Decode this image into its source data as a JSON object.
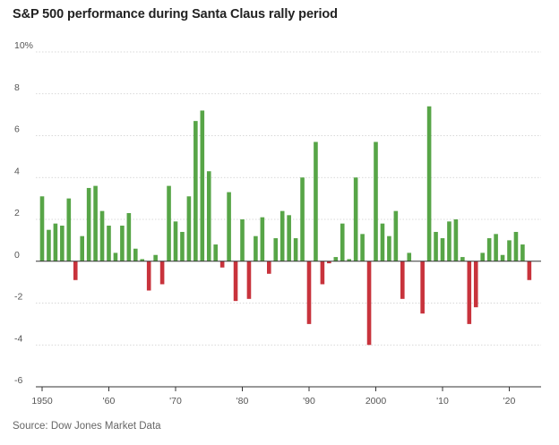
{
  "chart_data": {
    "type": "bar",
    "title": "S&P 500 performance during Santa Claus rally period",
    "source": "Source: Dow Jones Market Data",
    "colors": {
      "positive": "#57a547",
      "negative": "#c8333c",
      "grid": "#cccccc"
    },
    "ylim": [
      -6,
      10
    ],
    "yticks": [
      {
        "value": 10,
        "label": "10%"
      },
      {
        "value": 8,
        "label": "8"
      },
      {
        "value": 6,
        "label": "6"
      },
      {
        "value": 4,
        "label": "4"
      },
      {
        "value": 2,
        "label": "2"
      },
      {
        "value": 0,
        "label": "0"
      },
      {
        "value": -2,
        "label": "-2"
      },
      {
        "value": -4,
        "label": "-4"
      },
      {
        "value": -6,
        "label": "-6"
      }
    ],
    "xticks": [
      {
        "year": 1950,
        "label": "1950"
      },
      {
        "year": 1960,
        "label": "'60"
      },
      {
        "year": 1970,
        "label": "'70"
      },
      {
        "year": 1980,
        "label": "'80"
      },
      {
        "year": 1990,
        "label": "'90"
      },
      {
        "year": 2000,
        "label": "2000"
      },
      {
        "year": 2010,
        "label": "'10"
      },
      {
        "year": 2020,
        "label": "'20"
      }
    ],
    "x": [
      1950,
      1951,
      1952,
      1953,
      1954,
      1955,
      1956,
      1957,
      1958,
      1959,
      1960,
      1961,
      1962,
      1963,
      1964,
      1965,
      1966,
      1967,
      1968,
      1969,
      1970,
      1971,
      1972,
      1973,
      1974,
      1975,
      1976,
      1977,
      1978,
      1979,
      1980,
      1981,
      1982,
      1983,
      1984,
      1985,
      1986,
      1987,
      1988,
      1989,
      1990,
      1991,
      1992,
      1993,
      1994,
      1995,
      1996,
      1997,
      1998,
      1999,
      2000,
      2001,
      2002,
      2003,
      2004,
      2005,
      2006,
      2007,
      2008,
      2009,
      2010,
      2011,
      2012,
      2013,
      2014,
      2015,
      2016,
      2017,
      2018,
      2019,
      2020,
      2021,
      2022,
      2023
    ],
    "values": [
      3.1,
      1.5,
      1.8,
      1.7,
      3.0,
      -0.9,
      1.2,
      3.5,
      3.6,
      2.4,
      1.7,
      0.4,
      1.7,
      2.3,
      0.6,
      0.1,
      -1.4,
      0.3,
      -1.1,
      3.6,
      1.9,
      1.4,
      3.1,
      6.7,
      7.2,
      4.3,
      0.8,
      -0.3,
      3.3,
      -1.9,
      2.0,
      -1.8,
      1.2,
      2.1,
      -0.6,
      1.1,
      2.4,
      2.2,
      1.1,
      4.0,
      -3.0,
      5.7,
      -1.1,
      -0.1,
      0.2,
      1.8,
      0.1,
      4.0,
      1.3,
      -4.0,
      5.7,
      1.8,
      1.2,
      2.4,
      -1.8,
      0.4,
      0.0,
      -2.5,
      7.4,
      1.4,
      1.1,
      1.9,
      2.0,
      0.2,
      -3.0,
      -2.2,
      0.4,
      1.1,
      1.3,
      0.3,
      1.0,
      1.4,
      0.8,
      -0.9
    ]
  }
}
